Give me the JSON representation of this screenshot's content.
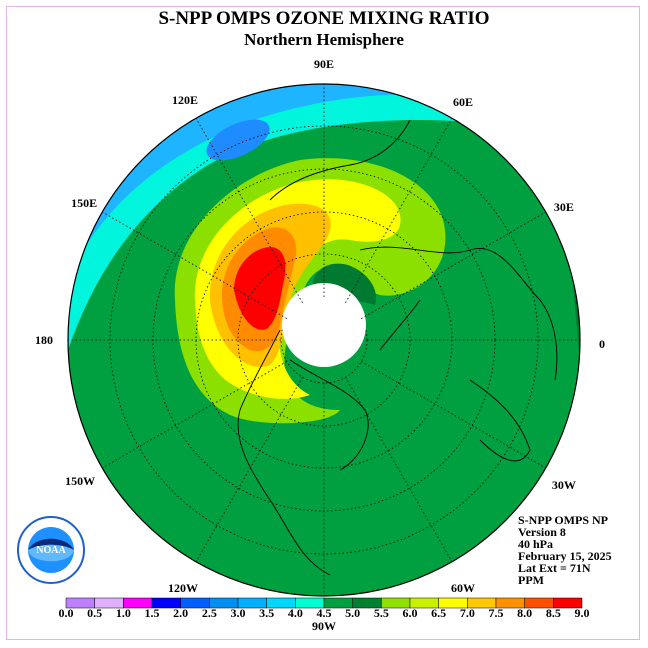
{
  "title": "S-NPP OMPS OZONE MIXING RATIO",
  "subtitle": "Northern Hemisphere",
  "longitude_labels": [
    "90E",
    "60E",
    "30E",
    "0",
    "30W",
    "60W",
    "90W",
    "120W",
    "150W",
    "180",
    "150E",
    "120E"
  ],
  "info": {
    "line1": "S-NPP OMPS NP",
    "line2": "Version 8",
    "line3": "40 hPa",
    "line4": "February 15, 2025",
    "line5": "Lat Ext = 71N",
    "line6": "PPM"
  },
  "logo_text": "NOAA",
  "logo_ring_text": "NATIONAL OCEANIC AND ATMOSPHERIC ADMINISTRATION · U.S. DEPARTMENT OF COMMERCE",
  "color_scale": {
    "ticks": [
      "0.0",
      "0.5",
      "1.0",
      "1.5",
      "2.0",
      "2.5",
      "3.0",
      "3.5",
      "4.0",
      "4.5",
      "5.0",
      "5.5",
      "6.0",
      "6.5",
      "7.0",
      "7.5",
      "8.0",
      "8.5",
      "9.0"
    ],
    "colors": [
      "#bf80ff",
      "#dfb0ff",
      "#ff00ff",
      "#0000ff",
      "#0060ff",
      "#0090f0",
      "#00b0ff",
      "#00d7ff",
      "#00ffd0",
      "#00a040",
      "#008030",
      "#90e000",
      "#c8f000",
      "#ffff00",
      "#ffc800",
      "#ff9000",
      "#ff5000",
      "#ff0000",
      "#8b5a3c"
    ]
  },
  "colors": {
    "deep_blue": "#1e90ff",
    "light_blue": "#1eb4ff",
    "cyan": "#00f5dc",
    "green": "#00a040",
    "dark_green": "#007a30",
    "yellow_green": "#a0e000",
    "yellow": "#ffff00",
    "orange": "#ffa000",
    "red": "#ff0000"
  }
}
